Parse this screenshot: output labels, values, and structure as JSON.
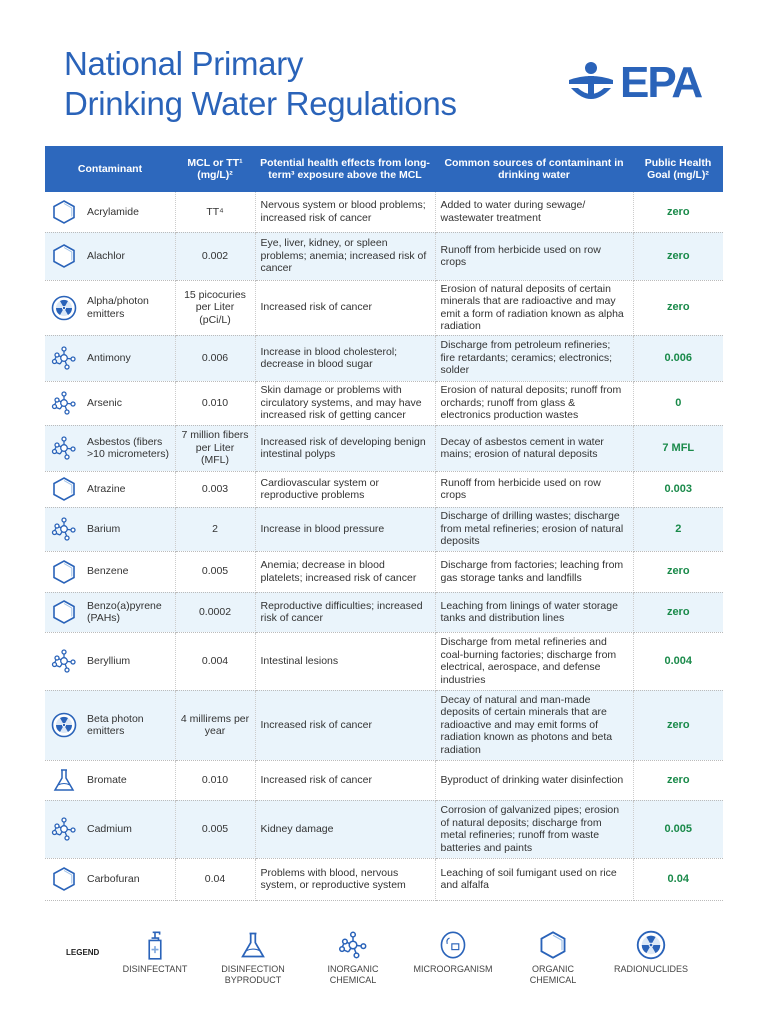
{
  "title_line1": "National Primary",
  "title_line2": "Drinking Water Regulations",
  "logo_text": "EPA",
  "colors": {
    "brand": "#2a63b9",
    "header": "#2d68bd",
    "goal": "#1a8a4a",
    "alt_row": "#eaf4fb"
  },
  "table": {
    "headers": [
      "Contaminant",
      "MCL or TT¹ (mg/L)²",
      "Potential health effects from long-term³ exposure above the MCL",
      "Common sources of contaminant in drinking water",
      "Public Health Goal (mg/L)²"
    ],
    "rows": [
      {
        "icon": "organic-chemical-icon",
        "name": "Acrylamide",
        "mcl": "TT⁴",
        "effects": "Nervous system or blood problems; increased risk of cancer",
        "sources": "Added to water during sewage/ wastewater treatment",
        "goal": "zero"
      },
      {
        "icon": "organic-chemical-icon",
        "name": "Alachlor",
        "mcl": "0.002",
        "effects": "Eye, liver, kidney, or spleen problems; anemia; increased risk of cancer",
        "sources": "Runoff from herbicide used on row crops",
        "goal": "zero"
      },
      {
        "icon": "radionuclides-icon",
        "name": "Alpha/photon emitters",
        "mcl": "15 picocuries per Liter (pCi/L)",
        "effects": "Increased risk of cancer",
        "sources": "Erosion of natural deposits of certain minerals that are radioactive and may emit a form of radiation known as alpha radiation",
        "goal": "zero"
      },
      {
        "icon": "inorganic-chemical-icon",
        "name": "Antimony",
        "mcl": "0.006",
        "effects": "Increase in blood cholesterol; decrease in blood sugar",
        "sources": "Discharge from petroleum refineries; fire retardants; ceramics; electronics; solder",
        "goal": "0.006"
      },
      {
        "icon": "inorganic-chemical-icon",
        "name": "Arsenic",
        "mcl": "0.010",
        "effects": "Skin damage or problems with circulatory systems, and may have increased risk of getting cancer",
        "sources": "Erosion of natural deposits; runoff from orchards; runoff from glass & electronics production wastes",
        "goal": "0"
      },
      {
        "icon": "inorganic-chemical-icon",
        "name": "Asbestos (fibers >10 micrometers)",
        "mcl": "7 million fibers per Liter (MFL)",
        "effects": "Increased risk of developing benign intestinal polyps",
        "sources": "Decay of asbestos cement in water mains; erosion of natural deposits",
        "goal": "7 MFL"
      },
      {
        "icon": "organic-chemical-icon",
        "name": "Atrazine",
        "mcl": "0.003",
        "effects": "Cardiovascular system or reproductive problems",
        "sources": "Runoff from herbicide used on row crops",
        "goal": "0.003"
      },
      {
        "icon": "inorganic-chemical-icon",
        "name": "Barium",
        "mcl": "2",
        "effects": "Increase in blood pressure",
        "sources": "Discharge of drilling wastes; discharge from metal refineries; erosion of natural deposits",
        "goal": "2"
      },
      {
        "icon": "organic-chemical-icon",
        "name": "Benzene",
        "mcl": "0.005",
        "effects": "Anemia; decrease in blood platelets; increased risk of cancer",
        "sources": "Discharge from factories; leaching from gas storage tanks and landfills",
        "goal": "zero"
      },
      {
        "icon": "organic-chemical-icon",
        "name": "Benzo(a)pyrene (PAHs)",
        "mcl": "0.0002",
        "effects": "Reproductive difficulties; increased risk of cancer",
        "sources": "Leaching from linings of water storage tanks and distribution lines",
        "goal": "zero"
      },
      {
        "icon": "inorganic-chemical-icon",
        "name": "Beryllium",
        "mcl": "0.004",
        "effects": "Intestinal lesions",
        "sources": "Discharge from metal refineries and coal-burning factories; discharge from electrical, aerospace, and defense industries",
        "goal": "0.004"
      },
      {
        "icon": "radionuclides-icon",
        "name": "Beta photon emitters",
        "mcl": "4 millirems per year",
        "effects": "Increased risk of cancer",
        "sources": "Decay of natural and man-made deposits of certain minerals that are radioactive and may emit forms of radiation known as photons and beta radiation",
        "goal": "zero"
      },
      {
        "icon": "disinfection-byproduct-icon",
        "name": "Bromate",
        "mcl": "0.010",
        "effects": "Increased risk of cancer",
        "sources": "Byproduct of drinking water disinfection",
        "goal": "zero"
      },
      {
        "icon": "inorganic-chemical-icon",
        "name": "Cadmium",
        "mcl": "0.005",
        "effects": "Kidney damage",
        "sources": "Corrosion of galvanized pipes; erosion of natural deposits; discharge from metal refineries; runoff from waste batteries and paints",
        "goal": "0.005"
      },
      {
        "icon": "organic-chemical-icon",
        "name": "Carbofuran",
        "mcl": "0.04",
        "effects": "Problems with blood, nervous system, or reproductive system",
        "sources": "Leaching of soil fumigant used on rice and alfalfa",
        "goal": "0.04"
      }
    ]
  },
  "legend": {
    "label": "LEGEND",
    "items": [
      {
        "icon": "disinfectant-icon",
        "label": "DISINFECTANT"
      },
      {
        "icon": "disinfection-byproduct-icon",
        "label": "DISINFECTION BYPRODUCT"
      },
      {
        "icon": "inorganic-chemical-icon",
        "label": "INORGANIC CHEMICAL"
      },
      {
        "icon": "microorganism-icon",
        "label": "MICROORGANISM"
      },
      {
        "icon": "organic-chemical-icon",
        "label": "ORGANIC CHEMICAL"
      },
      {
        "icon": "radionuclides-icon",
        "label": "RADIONUCLIDES"
      }
    ]
  }
}
